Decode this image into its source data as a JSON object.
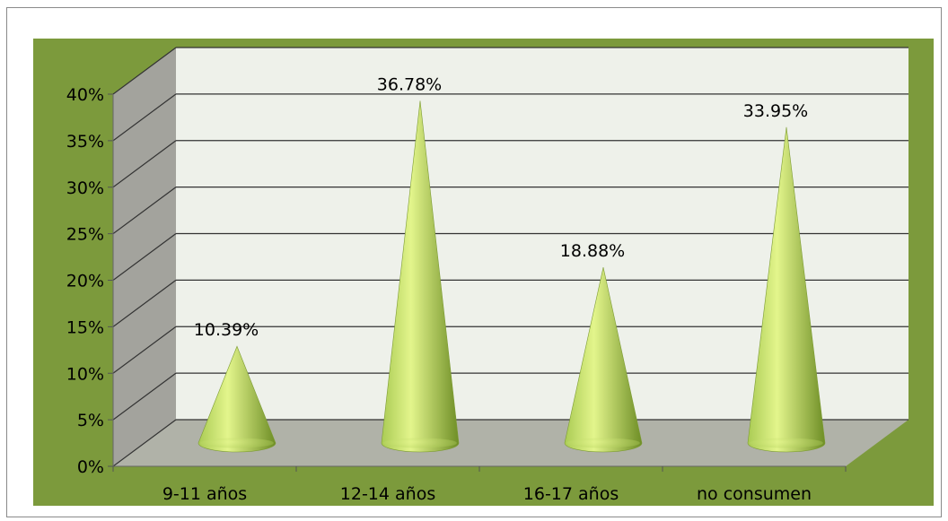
{
  "chart_data": {
    "type": "bar",
    "style": "3d-cone",
    "categories": [
      "9-11 años",
      "12-14 años",
      "16-17 años",
      "no consumen"
    ],
    "values": [
      10.39,
      36.78,
      18.88,
      33.95
    ],
    "data_labels": [
      "10.39%",
      "36.78%",
      "18.88%",
      "33.95%"
    ],
    "ylim": [
      0,
      40
    ],
    "yticks": [
      "0%",
      "5%",
      "10%",
      "15%",
      "20%",
      "25%",
      "30%",
      "35%",
      "40%"
    ],
    "grid": true,
    "legend": "none",
    "colors": {
      "plot_area_bg": "#7c9a3c",
      "back_wall": "#eef1ea",
      "side_wall": "#a3a39d",
      "floor": "#b0b2a8",
      "cone_light": "#e3f58c",
      "cone_mid": "#aacb54",
      "cone_dark": "#6e8e26",
      "gridline": "#333333"
    }
  }
}
